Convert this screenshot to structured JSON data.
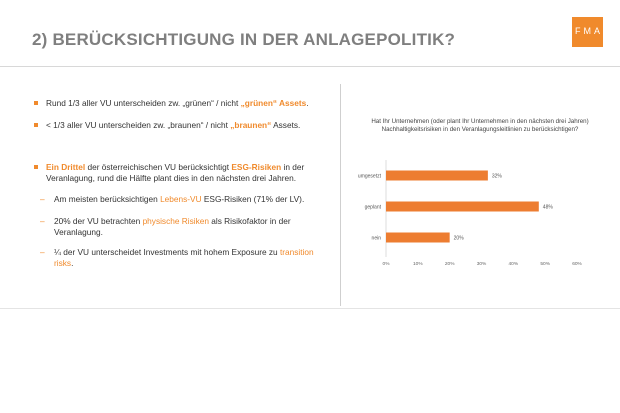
{
  "slide": {
    "title": "2) BERÜCKSICHTIGUNG IN DER ANLAGEPOLITIK?",
    "logo_text": "FMA",
    "bullets": [
      {
        "parts": [
          "Rund 1/3 aller VU unterscheiden zw. „grünen“ / nicht ",
          "„grünen“ Assets",
          "."
        ]
      },
      {
        "parts": [
          "< 1/3 aller VU unterscheiden zw. „braunen“ / nicht ",
          "„braunen“",
          " Assets."
        ]
      }
    ],
    "main_bullet": {
      "highlight": "Ein Drittel",
      "text1": " der österreichischen VU berücksichtigt ",
      "highlight2": "ESG-Risiken",
      "text2": " in der Veranlagung, rund die Hälfte plant dies in den nächsten drei Jahren."
    },
    "sub_bullets": [
      {
        "pre": "Am meisten berücksichtigen ",
        "hl": "Lebens-VU",
        "post": " ESG-Risiken (71% der LV)."
      },
      {
        "pre": "20% der VU betrachten ",
        "hl": "physische Risiken",
        "post": " als Risikofaktor in der Veranlagung."
      },
      {
        "pre": "¼ der VU unterscheidet Investments mit hohem Exposure zu ",
        "hl": "transition risks",
        "post": "."
      }
    ],
    "dash": "–"
  },
  "chart_data": {
    "type": "bar",
    "title": "Hat Ihr Unternehmen (oder plant Ihr Unternehmen in den nächsten drei Jahren) Nachhaltigkeitsrisiken in den Veranlagungsleitlinien zu berücksichtigen?",
    "categories": [
      "umgesetzt",
      "geplant",
      "nein"
    ],
    "values": [
      32,
      48,
      20
    ],
    "value_labels": [
      "32%",
      "48%",
      "20%"
    ],
    "xlim": [
      0,
      60
    ],
    "ticks": [
      "0%",
      "10%",
      "20%",
      "30%",
      "40%",
      "50%",
      "60%"
    ],
    "orientation": "horizontal",
    "grid": false,
    "bar_color": "#ed7d31"
  }
}
